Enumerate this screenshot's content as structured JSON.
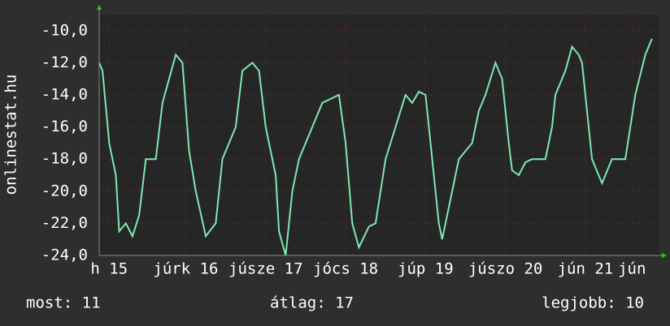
{
  "chart_data": {
    "type": "line",
    "y_label": "onlinestat.hu",
    "x": [
      0,
      1,
      3,
      5,
      6,
      8,
      10,
      12,
      14,
      17,
      19,
      21,
      23,
      25,
      27,
      29,
      32,
      35,
      37,
      39,
      41,
      43,
      46,
      48,
      50,
      53,
      54,
      56,
      58,
      60,
      62,
      64,
      67,
      70,
      72,
      74,
      76,
      78,
      81,
      83,
      86,
      89,
      92,
      94,
      96,
      98,
      100,
      102,
      103,
      106,
      108,
      110,
      112,
      114,
      116,
      119,
      121,
      123,
      124,
      126,
      128,
      130,
      134,
      136,
      137,
      140,
      142,
      144,
      145,
      148,
      151,
      154,
      158,
      161,
      164,
      166
    ],
    "series": [
      {
        "name": "onlinestat.hu",
        "color": "#7fe8b0",
        "values": [
          -12,
          -12.5,
          -17,
          -19,
          -22.5,
          -22,
          -22.8,
          -21.5,
          -18,
          -18,
          -14.5,
          -13,
          -11.5,
          -12,
          -17.5,
          -20,
          -22.8,
          -22,
          -18,
          -17,
          -16,
          -12.5,
          -12,
          -12.5,
          -16,
          -19,
          -22.5,
          -24,
          -20,
          -18,
          -17,
          -16,
          -14.5,
          -14.2,
          -14,
          -17,
          -22,
          -23.5,
          -22.2,
          -22,
          -18,
          -16,
          -14,
          -14.5,
          -13.8,
          -14,
          -18,
          -22,
          -23,
          -20,
          -18,
          -17.5,
          -17,
          -15,
          -14,
          -12,
          -13,
          -17,
          -18.7,
          -19,
          -18.2,
          -18,
          -18,
          -16,
          -14,
          -12.5,
          -11,
          -11.5,
          -12,
          -18,
          -19.5,
          -18,
          -18,
          -14,
          -11.5,
          -10.5
        ]
      }
    ],
    "xlim": [
      0,
      168
    ],
    "xticks": [
      {
        "value": 3,
        "label": "h 15"
      },
      {
        "value": 26,
        "label": "júrk 16"
      },
      {
        "value": 50,
        "label": "júsze 17"
      },
      {
        "value": 74,
        "label": "jócs 18"
      },
      {
        "value": 98,
        "label": "júp 19"
      },
      {
        "value": 122,
        "label": "júszo 20"
      },
      {
        "value": 146,
        "label": "jún 21"
      },
      {
        "value": 160,
        "label": "jún"
      }
    ],
    "ylim": [
      -24,
      -9
    ],
    "yticks": [
      {
        "value": -24,
        "label": "-24,0"
      },
      {
        "value": -22,
        "label": "-22,0"
      },
      {
        "value": -20,
        "label": "-20,0"
      },
      {
        "value": -18,
        "label": "-18,0"
      },
      {
        "value": -16,
        "label": "-16,0"
      },
      {
        "value": -14,
        "label": "-14,0"
      },
      {
        "value": -12,
        "label": "-12,0"
      },
      {
        "value": -10,
        "label": "-10,0"
      }
    ],
    "grid": true,
    "stats": {
      "current": "most: 11",
      "average": "átlag: 17",
      "best": "legjobb: 10"
    }
  }
}
